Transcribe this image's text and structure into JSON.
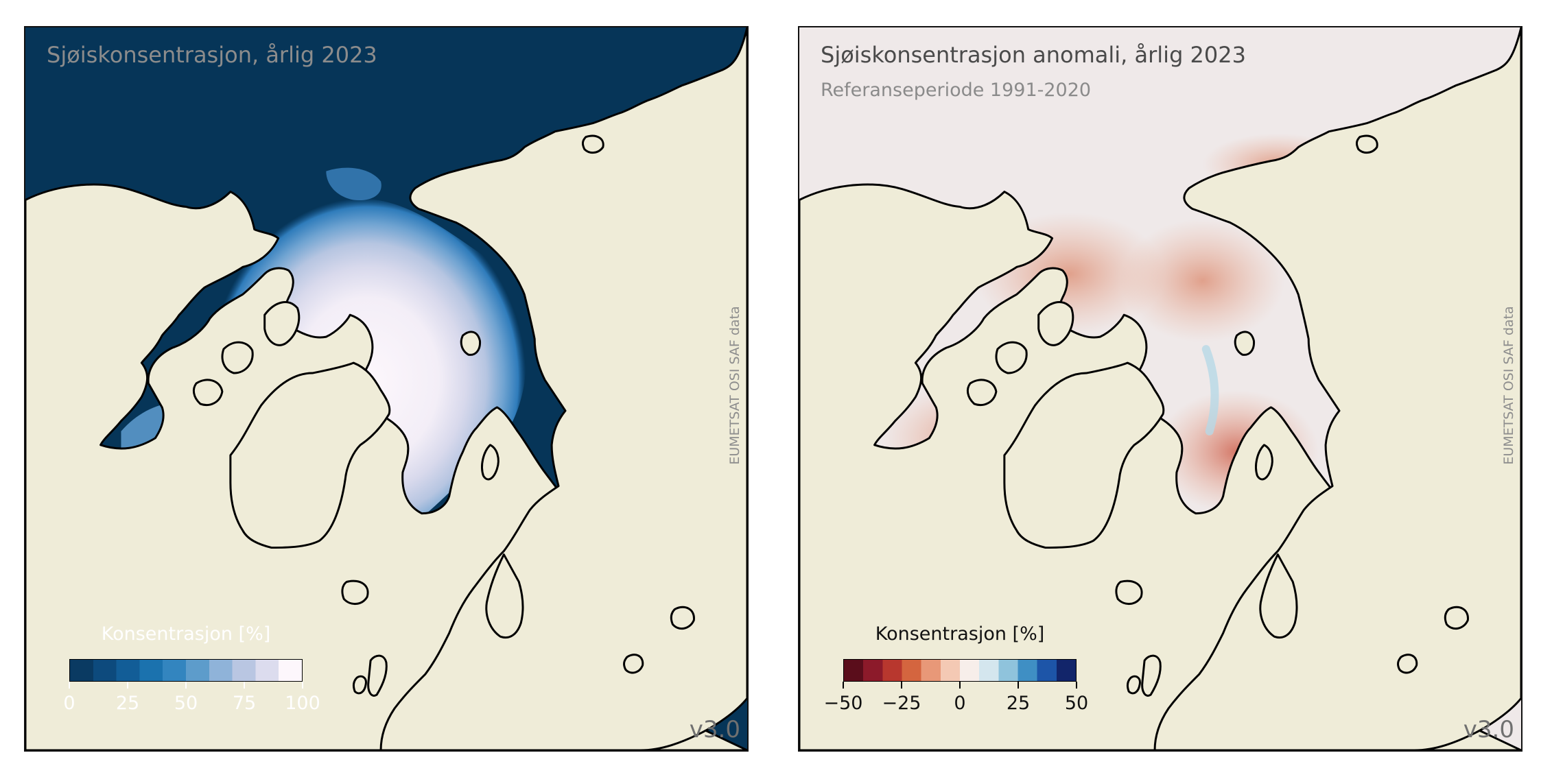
{
  "colors": {
    "land": "#efecd8",
    "ocean_left": "#063558",
    "ocean_right": "#efe9e9",
    "coast": "#000000"
  },
  "panels": [
    {
      "title": "Sjøiskonsentrasjon, årlig 2023",
      "title_color": "#8c8c8c",
      "subtitle": "",
      "credit": "EUMETSAT OSI SAF data",
      "version": "v3.0",
      "colorbar": {
        "label": "Konsentrasjon [%]",
        "ticks": [
          "0",
          "25",
          "50",
          "75",
          "100"
        ],
        "range": [
          0,
          100
        ],
        "colors": [
          "#0a3a62",
          "#0d4a7d",
          "#125d97",
          "#1b72ae",
          "#3385bf",
          "#5d9ccb",
          "#8fb3d9",
          "#b9c6e2",
          "#dcdcee",
          "#fdf7fc"
        ]
      }
    },
    {
      "title": "Sjøiskonsentrasjon anomali, årlig 2023",
      "title_color": "#4a4a4a",
      "subtitle": "Referanseperiode 1991-2020",
      "credit": "EUMETSAT OSI SAF data",
      "version": "v3.0",
      "colorbar": {
        "label": "Konsentrasjon [%]",
        "ticks": [
          "−50",
          "−25",
          "0",
          "25",
          "50"
        ],
        "range": [
          -50,
          50
        ],
        "colors": [
          "#5a0d1b",
          "#8c1a2a",
          "#b8372e",
          "#d4653f",
          "#e89878",
          "#f4c9b4",
          "#f7eeea",
          "#d4e6ee",
          "#8fc3dc",
          "#3f8fc4",
          "#1d55a8",
          "#12256a"
        ]
      }
    }
  ]
}
